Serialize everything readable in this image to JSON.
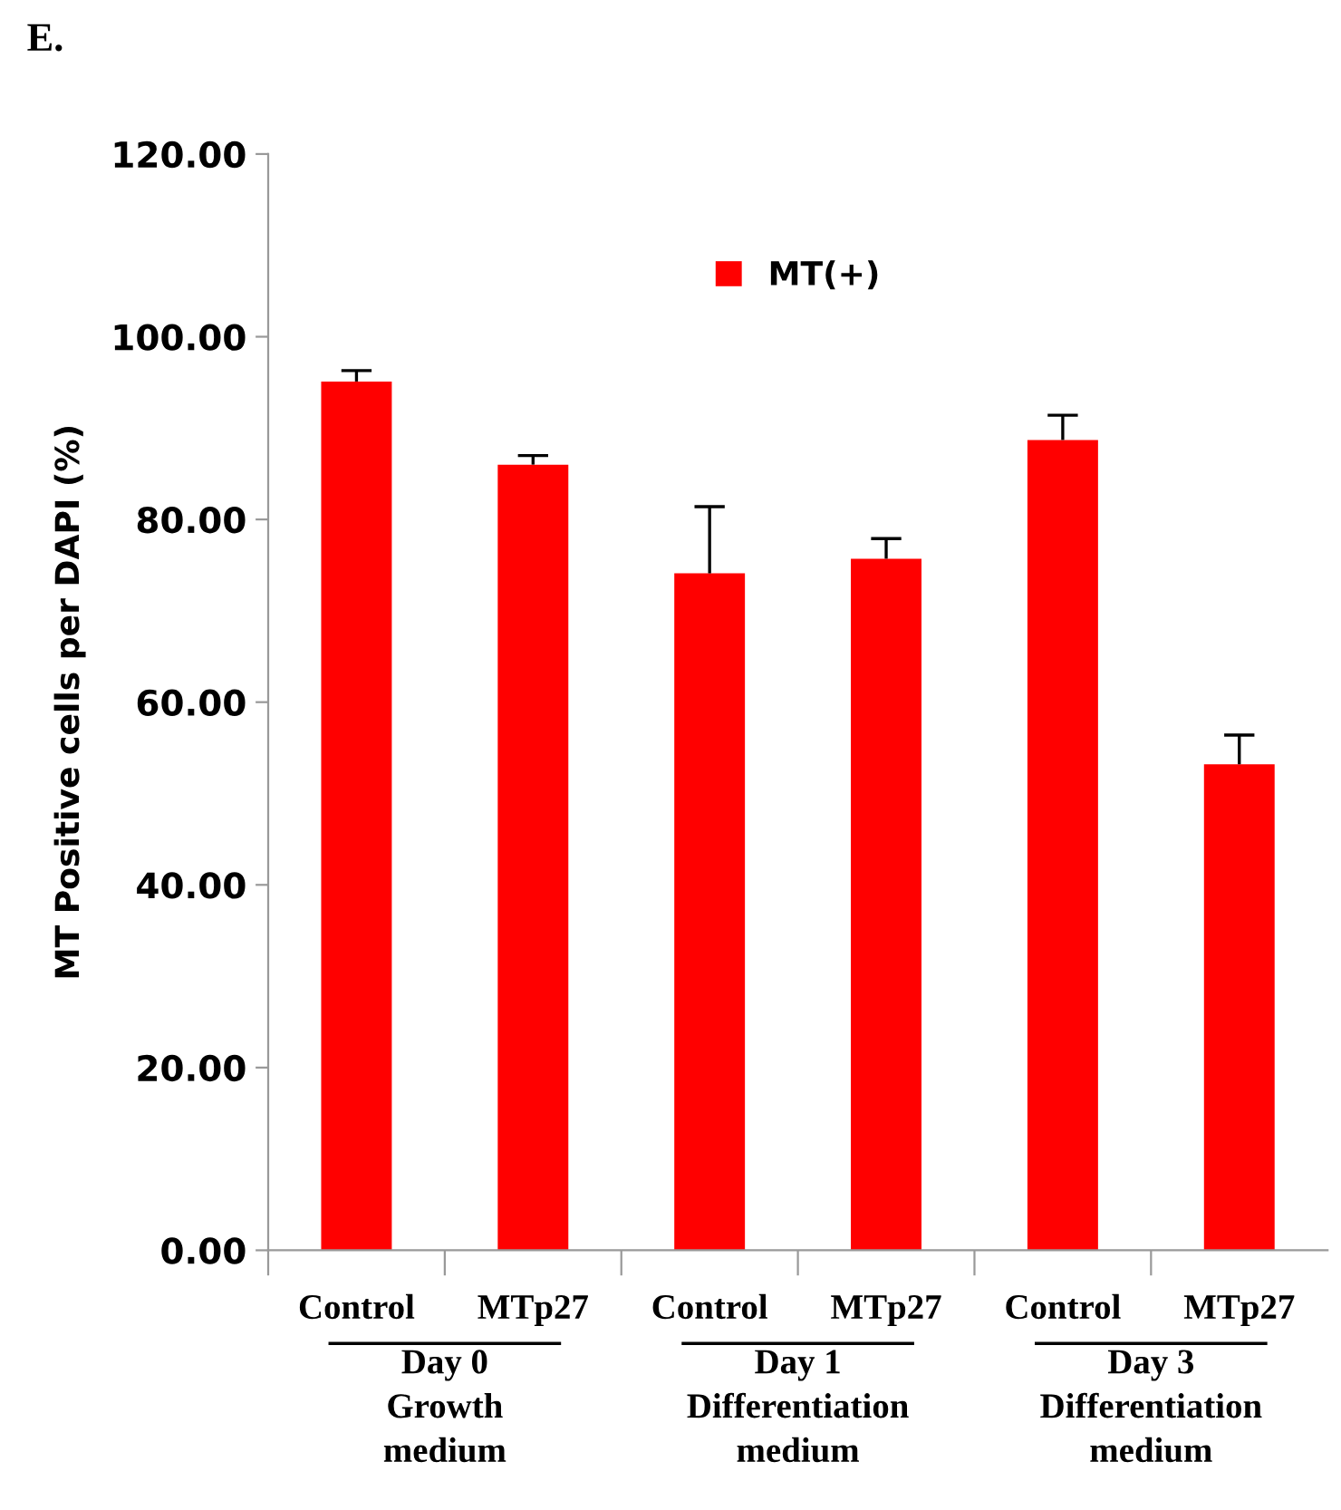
{
  "chart_data": {
    "type": "bar",
    "title": "E.",
    "ylabel": "MT Positive cells per DAPI (%)",
    "categories": [
      "Control",
      "MTp27",
      "Control",
      "MTp27",
      "Control",
      "MTp27"
    ],
    "series": [
      {
        "name": "MT(+)",
        "color": "#ff0000",
        "values": [
          95.1,
          86.0,
          74.1,
          75.7,
          88.7,
          53.2
        ],
        "errors": [
          [
            95.1,
            96.3
          ],
          [
            86.0,
            87.0
          ],
          [
            74.1,
            81.4
          ],
          [
            75.7,
            77.9
          ],
          [
            88.7,
            91.4
          ],
          [
            53.2,
            56.4
          ]
        ]
      }
    ],
    "ylim": [
      0,
      120
    ],
    "yticks": [
      {
        "value": 0,
        "label": "0.00"
      },
      {
        "value": 20,
        "label": "20.00"
      },
      {
        "value": 40,
        "label": "40.00"
      },
      {
        "value": 60,
        "label": "60.00"
      },
      {
        "value": 80,
        "label": "80.00"
      },
      {
        "value": 100,
        "label": "100.00"
      },
      {
        "value": 120,
        "label": "120.00"
      }
    ],
    "annotations": [
      "Day 0\nGrowth\nmedium",
      "Day 1\nDifferentiation\nmedium",
      "Day 3\nDifferentiation\nmedium"
    ],
    "grid": false,
    "legend": "top"
  }
}
